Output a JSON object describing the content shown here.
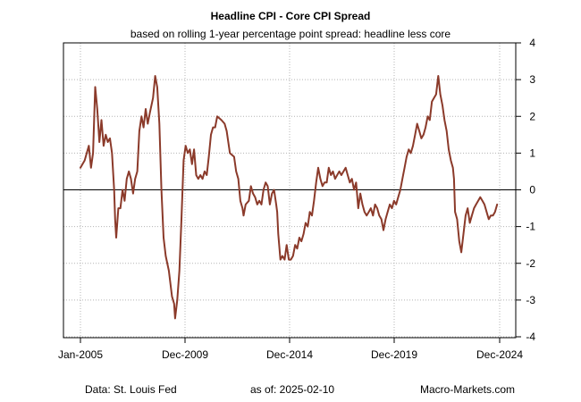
{
  "chart_data": {
    "type": "line",
    "title": "Headline CPI - Core CPI Spread",
    "subtitle": "based on rolling 1-year percentage point spread: headline less core",
    "xlabel": "",
    "ylabel": "",
    "x_start": "2005-01",
    "x_end": "2024-12",
    "ylim": [
      -4,
      4
    ],
    "x_tick_labels": [
      "Jan-2005",
      "Dec-2009",
      "Dec-2014",
      "Dec-2019",
      "Dec-2024"
    ],
    "y_ticks": [
      4,
      3,
      2,
      1,
      0,
      -1,
      -2,
      -3,
      -4
    ],
    "y_tick_labels": [
      "4",
      "3",
      "2",
      "1",
      "0",
      "-1",
      "-2",
      "-3",
      "-4"
    ],
    "grid": true,
    "reference_line": 0,
    "series": [
      {
        "name": "Headline less core spread",
        "color": "#8b3a2a",
        "points": [
          [
            2005.0,
            0.6
          ],
          [
            2005.2,
            0.8
          ],
          [
            2005.4,
            1.2
          ],
          [
            2005.5,
            0.6
          ],
          [
            2005.6,
            1.0
          ],
          [
            2005.7,
            2.8
          ],
          [
            2005.8,
            2.2
          ],
          [
            2005.9,
            1.3
          ],
          [
            2006.0,
            1.9
          ],
          [
            2006.1,
            1.2
          ],
          [
            2006.2,
            1.5
          ],
          [
            2006.3,
            1.3
          ],
          [
            2006.4,
            1.4
          ],
          [
            2006.5,
            1.0
          ],
          [
            2006.6,
            0.0
          ],
          [
            2006.65,
            -0.8
          ],
          [
            2006.7,
            -1.3
          ],
          [
            2006.8,
            -0.5
          ],
          [
            2006.9,
            -0.5
          ],
          [
            2007.0,
            0.0
          ],
          [
            2007.1,
            -0.3
          ],
          [
            2007.2,
            0.3
          ],
          [
            2007.3,
            0.5
          ],
          [
            2007.4,
            0.3
          ],
          [
            2007.5,
            -0.1
          ],
          [
            2007.6,
            0.3
          ],
          [
            2007.7,
            0.5
          ],
          [
            2007.8,
            1.6
          ],
          [
            2007.9,
            2.0
          ],
          [
            2008.0,
            1.7
          ],
          [
            2008.1,
            2.2
          ],
          [
            2008.2,
            1.8
          ],
          [
            2008.3,
            2.1
          ],
          [
            2008.45,
            2.5
          ],
          [
            2008.55,
            3.1
          ],
          [
            2008.65,
            2.8
          ],
          [
            2008.75,
            1.8
          ],
          [
            2008.85,
            0.0
          ],
          [
            2008.95,
            -1.3
          ],
          [
            2009.05,
            -1.8
          ],
          [
            2009.2,
            -2.2
          ],
          [
            2009.35,
            -2.9
          ],
          [
            2009.45,
            -3.1
          ],
          [
            2009.5,
            -3.5
          ],
          [
            2009.6,
            -3.0
          ],
          [
            2009.7,
            -2.2
          ],
          [
            2009.8,
            -0.8
          ],
          [
            2009.9,
            0.8
          ],
          [
            2010.0,
            1.2
          ],
          [
            2010.1,
            1.0
          ],
          [
            2010.2,
            1.1
          ],
          [
            2010.3,
            0.7
          ],
          [
            2010.4,
            1.1
          ],
          [
            2010.5,
            0.4
          ],
          [
            2010.6,
            0.3
          ],
          [
            2010.7,
            0.4
          ],
          [
            2010.8,
            0.3
          ],
          [
            2010.9,
            0.5
          ],
          [
            2011.0,
            0.4
          ],
          [
            2011.1,
            0.9
          ],
          [
            2011.2,
            1.5
          ],
          [
            2011.3,
            1.7
          ],
          [
            2011.4,
            1.7
          ],
          [
            2011.5,
            2.0
          ],
          [
            2011.7,
            1.9
          ],
          [
            2011.85,
            1.8
          ],
          [
            2011.95,
            1.6
          ],
          [
            2012.1,
            1.0
          ],
          [
            2012.3,
            0.9
          ],
          [
            2012.4,
            0.5
          ],
          [
            2012.5,
            0.3
          ],
          [
            2012.6,
            -0.3
          ],
          [
            2012.7,
            -0.5
          ],
          [
            2012.75,
            -0.7
          ],
          [
            2012.85,
            -0.4
          ],
          [
            2013.0,
            -0.3
          ],
          [
            2013.1,
            0.1
          ],
          [
            2013.2,
            -0.1
          ],
          [
            2013.3,
            -0.2
          ],
          [
            2013.4,
            -0.4
          ],
          [
            2013.5,
            -0.3
          ],
          [
            2013.6,
            -0.4
          ],
          [
            2013.7,
            0.0
          ],
          [
            2013.8,
            0.2
          ],
          [
            2013.9,
            0.1
          ],
          [
            2014.0,
            -0.4
          ],
          [
            2014.1,
            -0.1
          ],
          [
            2014.2,
            0.0
          ],
          [
            2014.3,
            -0.4
          ],
          [
            2014.35,
            -0.6
          ],
          [
            2014.4,
            -1.2
          ],
          [
            2014.5,
            -1.9
          ],
          [
            2014.6,
            -1.8
          ],
          [
            2014.7,
            -1.9
          ],
          [
            2014.8,
            -1.5
          ],
          [
            2014.9,
            -1.9
          ],
          [
            2015.0,
            -1.9
          ],
          [
            2015.1,
            -1.8
          ],
          [
            2015.2,
            -1.5
          ],
          [
            2015.3,
            -1.6
          ],
          [
            2015.4,
            -1.3
          ],
          [
            2015.5,
            -1.4
          ],
          [
            2015.6,
            -1.2
          ],
          [
            2015.7,
            -0.9
          ],
          [
            2015.8,
            -1.0
          ],
          [
            2015.9,
            -0.6
          ],
          [
            2016.0,
            -0.7
          ],
          [
            2016.1,
            -0.3
          ],
          [
            2016.2,
            0.2
          ],
          [
            2016.3,
            0.6
          ],
          [
            2016.4,
            0.3
          ],
          [
            2016.5,
            0.1
          ],
          [
            2016.6,
            0.2
          ],
          [
            2016.7,
            0.2
          ],
          [
            2016.8,
            0.6
          ],
          [
            2016.9,
            0.4
          ],
          [
            2017.0,
            0.5
          ],
          [
            2017.1,
            0.3
          ],
          [
            2017.2,
            0.4
          ],
          [
            2017.3,
            0.5
          ],
          [
            2017.4,
            0.4
          ],
          [
            2017.5,
            0.5
          ],
          [
            2017.6,
            0.6
          ],
          [
            2017.7,
            0.4
          ],
          [
            2017.8,
            0.2
          ],
          [
            2017.9,
            0.3
          ],
          [
            2018.0,
            0.0
          ],
          [
            2018.1,
            0.2
          ],
          [
            2018.2,
            -0.5
          ],
          [
            2018.3,
            -0.1
          ],
          [
            2018.4,
            -0.4
          ],
          [
            2018.5,
            -0.6
          ],
          [
            2018.6,
            -0.7
          ],
          [
            2018.7,
            -0.6
          ],
          [
            2018.8,
            -0.5
          ],
          [
            2018.9,
            -0.7
          ],
          [
            2019.0,
            -0.4
          ],
          [
            2019.1,
            -0.5
          ],
          [
            2019.2,
            -0.7
          ],
          [
            2019.3,
            -0.8
          ],
          [
            2019.4,
            -1.1
          ],
          [
            2019.5,
            -0.8
          ],
          [
            2019.6,
            -0.6
          ],
          [
            2019.7,
            -0.4
          ],
          [
            2019.8,
            -0.5
          ],
          [
            2019.9,
            -0.3
          ],
          [
            2020.0,
            -0.4
          ],
          [
            2020.1,
            -0.2
          ],
          [
            2020.2,
            0.0
          ],
          [
            2020.3,
            0.3
          ],
          [
            2020.4,
            0.6
          ],
          [
            2020.5,
            0.9
          ],
          [
            2020.6,
            1.1
          ],
          [
            2020.7,
            1.0
          ],
          [
            2020.8,
            1.2
          ],
          [
            2020.9,
            1.5
          ],
          [
            2021.0,
            1.8
          ],
          [
            2021.1,
            1.6
          ],
          [
            2021.2,
            1.4
          ],
          [
            2021.3,
            1.5
          ],
          [
            2021.4,
            1.7
          ],
          [
            2021.5,
            2.0
          ],
          [
            2021.6,
            1.9
          ],
          [
            2021.7,
            2.4
          ],
          [
            2021.8,
            2.5
          ],
          [
            2021.9,
            2.6
          ],
          [
            2022.0,
            3.1
          ],
          [
            2022.1,
            2.6
          ],
          [
            2022.2,
            2.3
          ],
          [
            2022.3,
            1.9
          ],
          [
            2022.4,
            1.6
          ],
          [
            2022.5,
            1.1
          ],
          [
            2022.6,
            0.8
          ],
          [
            2022.7,
            0.6
          ],
          [
            2022.75,
            0.3
          ],
          [
            2022.8,
            -0.6
          ],
          [
            2022.9,
            -0.8
          ],
          [
            2023.0,
            -1.4
          ],
          [
            2023.1,
            -1.7
          ],
          [
            2023.2,
            -1.2
          ],
          [
            2023.3,
            -0.7
          ],
          [
            2023.4,
            -0.5
          ],
          [
            2023.5,
            -0.9
          ],
          [
            2023.6,
            -0.7
          ],
          [
            2023.7,
            -0.5
          ],
          [
            2023.8,
            -0.4
          ],
          [
            2023.9,
            -0.3
          ],
          [
            2024.0,
            -0.2
          ],
          [
            2024.1,
            -0.3
          ],
          [
            2024.2,
            -0.4
          ],
          [
            2024.3,
            -0.6
          ],
          [
            2024.4,
            -0.8
          ],
          [
            2024.5,
            -0.7
          ],
          [
            2024.6,
            -0.7
          ],
          [
            2024.7,
            -0.6
          ],
          [
            2024.8,
            -0.4
          ]
        ]
      }
    ]
  },
  "footer": {
    "source": "Data: St. Louis Fed",
    "as_of": "as of:  2025-02-10",
    "brand": "Macro-Markets.com"
  }
}
